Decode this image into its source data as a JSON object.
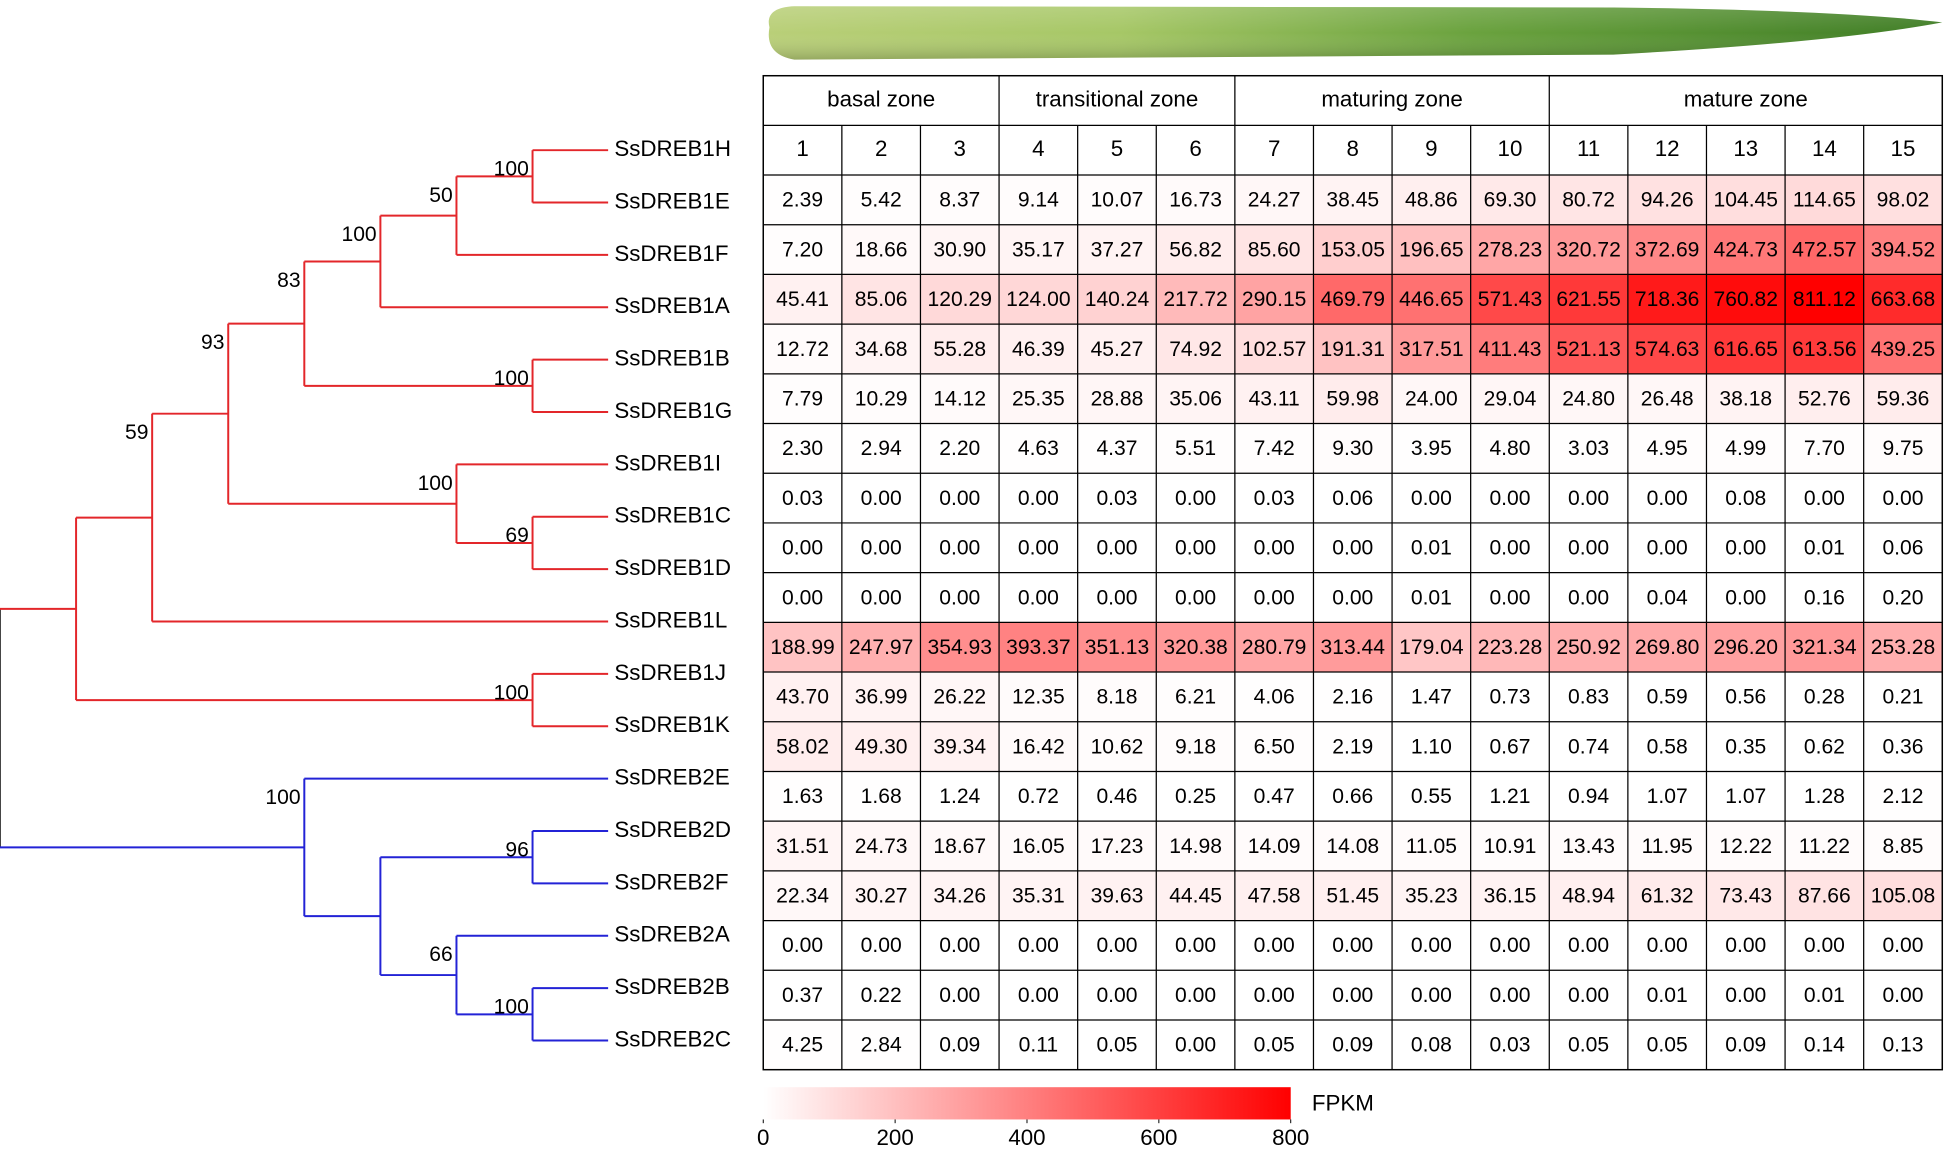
{
  "tree": {
    "color": "#444444",
    "children": [
      {
        "color": "#e3262a",
        "children": [
          {
            "support": 59,
            "children": [
              {
                "support": 93,
                "children": [
                  {
                    "support": 83,
                    "children": [
                      {
                        "support": 100,
                        "children": [
                          {
                            "support": 50,
                            "children": [
                              {
                                "support": 100,
                                "children": [
                                  {
                                    "name": "SsDREB1H"
                                  },
                                  {
                                    "name": "SsDREB1E"
                                  }
                                ]
                              },
                              {
                                "name": "SsDREB1F"
                              }
                            ]
                          },
                          {
                            "name": "SsDREB1A"
                          }
                        ]
                      },
                      {
                        "support": 100,
                        "children": [
                          {
                            "name": "SsDREB1B"
                          },
                          {
                            "name": "SsDREB1G"
                          }
                        ]
                      }
                    ]
                  },
                  {
                    "support": 100,
                    "children": [
                      {
                        "name": "SsDREB1I"
                      },
                      {
                        "support": 69,
                        "children": [
                          {
                            "name": "SsDREB1C"
                          },
                          {
                            "name": "SsDREB1D"
                          }
                        ]
                      }
                    ]
                  }
                ]
              },
              {
                "name": "SsDREB1L"
              }
            ]
          },
          {
            "support": 100,
            "children": [
              {
                "name": "SsDREB1J"
              },
              {
                "name": "SsDREB1K"
              }
            ]
          }
        ]
      },
      {
        "color": "#2323d6",
        "support": 100,
        "children": [
          {
            "name": "SsDREB2E"
          },
          {
            "children": [
              {
                "support": 96,
                "children": [
                  {
                    "name": "SsDREB2D"
                  },
                  {
                    "name": "SsDREB2F"
                  }
                ]
              },
              {
                "support": 66,
                "children": [
                  {
                    "name": "SsDREB2A"
                  },
                  {
                    "support": 100,
                    "children": [
                      {
                        "name": "SsDREB2B"
                      },
                      {
                        "name": "SsDREB2C"
                      }
                    ]
                  }
                ]
              }
            ]
          }
        ]
      }
    ]
  },
  "chart_data": {
    "type": "heatmap",
    "zones": [
      {
        "name": "basal zone",
        "categories": [
          "1",
          "2",
          "3"
        ]
      },
      {
        "name": "transitional zone",
        "categories": [
          "4",
          "5",
          "6"
        ]
      },
      {
        "name": "maturing zone",
        "categories": [
          "7",
          "8",
          "9",
          "10"
        ]
      },
      {
        "name": "mature zone",
        "categories": [
          "11",
          "12",
          "13",
          "14",
          "15"
        ]
      }
    ],
    "values": [
      [
        2.39,
        5.42,
        8.37,
        9.14,
        10.07,
        16.73,
        24.27,
        38.45,
        48.86,
        69.3,
        80.72,
        94.26,
        104.45,
        114.65,
        98.02
      ],
      [
        7.2,
        18.66,
        30.9,
        35.17,
        37.27,
        56.82,
        85.6,
        153.05,
        196.65,
        278.23,
        320.72,
        372.69,
        424.73,
        472.57,
        394.52
      ],
      [
        45.41,
        85.06,
        120.29,
        124.0,
        140.24,
        217.72,
        290.15,
        469.79,
        446.65,
        571.43,
        621.55,
        718.36,
        760.82,
        811.12,
        663.68
      ],
      [
        12.72,
        34.68,
        55.28,
        46.39,
        45.27,
        74.92,
        102.57,
        191.31,
        317.51,
        411.43,
        521.13,
        574.63,
        616.65,
        613.56,
        439.25
      ],
      [
        7.79,
        10.29,
        14.12,
        25.35,
        28.88,
        35.06,
        43.11,
        59.98,
        24.0,
        29.04,
        24.8,
        26.48,
        38.18,
        52.76,
        59.36
      ],
      [
        2.3,
        2.94,
        2.2,
        4.63,
        4.37,
        5.51,
        7.42,
        9.3,
        3.95,
        4.8,
        3.03,
        4.95,
        4.99,
        7.7,
        9.75
      ],
      [
        0.03,
        0.0,
        0.0,
        0.0,
        0.03,
        0.0,
        0.03,
        0.06,
        0.0,
        0.0,
        0.0,
        0.0,
        0.08,
        0.0,
        0.0
      ],
      [
        0.0,
        0.0,
        0.0,
        0.0,
        0.0,
        0.0,
        0.0,
        0.0,
        0.01,
        0.0,
        0.0,
        0.0,
        0.0,
        0.01,
        0.06
      ],
      [
        0.0,
        0.0,
        0.0,
        0.0,
        0.0,
        0.0,
        0.0,
        0.0,
        0.01,
        0.0,
        0.0,
        0.04,
        0.0,
        0.16,
        0.2
      ],
      [
        188.99,
        247.97,
        354.93,
        393.37,
        351.13,
        320.38,
        280.79,
        313.44,
        179.04,
        223.28,
        250.92,
        269.8,
        296.2,
        321.34,
        253.28
      ],
      [
        43.7,
        36.99,
        26.22,
        12.35,
        8.18,
        6.21,
        4.06,
        2.16,
        1.47,
        0.73,
        0.83,
        0.59,
        0.56,
        0.28,
        0.21
      ],
      [
        58.02,
        49.3,
        39.34,
        16.42,
        10.62,
        9.18,
        6.5,
        2.19,
        1.1,
        0.67,
        0.74,
        0.58,
        0.35,
        0.62,
        0.36
      ],
      [
        1.63,
        1.68,
        1.24,
        0.72,
        0.46,
        0.25,
        0.47,
        0.66,
        0.55,
        1.21,
        0.94,
        1.07,
        1.07,
        1.28,
        2.12
      ],
      [
        31.51,
        24.73,
        18.67,
        16.05,
        17.23,
        14.98,
        14.09,
        14.08,
        11.05,
        10.91,
        13.43,
        11.95,
        12.22,
        11.22,
        8.85
      ],
      [
        22.34,
        30.27,
        34.26,
        35.31,
        39.63,
        44.45,
        47.58,
        51.45,
        35.23,
        36.15,
        48.94,
        61.32,
        73.43,
        87.66,
        105.08
      ],
      [
        0.0,
        0.0,
        0.0,
        0.0,
        0.0,
        0.0,
        0.0,
        0.0,
        0.0,
        0.0,
        0.0,
        0.0,
        0.0,
        0.0,
        0.0
      ],
      [
        0.37,
        0.22,
        0.0,
        0.0,
        0.0,
        0.0,
        0.0,
        0.0,
        0.0,
        0.0,
        0.0,
        0.01,
        0.0,
        0.01,
        0.0
      ],
      [
        4.25,
        2.84,
        0.09,
        0.11,
        0.05,
        0.0,
        0.05,
        0.09,
        0.08,
        0.03,
        0.05,
        0.05,
        0.09,
        0.14,
        0.13
      ]
    ],
    "value_labels": [
      [
        "2.39",
        "5.42",
        "8.37",
        "9.14",
        "10.07",
        "16.73",
        "24.27",
        "38.45",
        "48.86",
        "69.30",
        "80.72",
        "94.26",
        "104.45",
        "114.65",
        "98.02"
      ],
      [
        "7.20",
        "18.66",
        "30.90",
        "35.17",
        "37.27",
        "56.82",
        "85.60",
        "153.05",
        "196.65",
        "278.23",
        "320.72",
        "372.69",
        "424.73",
        "472.57",
        "394.52"
      ],
      [
        "45.41",
        "85.06",
        "120.29",
        "124.00",
        "140.24",
        "217.72",
        "290.15",
        "469.79",
        "446.65",
        "571.43",
        "621.55",
        "718.36",
        "760.82",
        "811.12",
        "663.68"
      ],
      [
        "12.72",
        "34.68",
        "55.28",
        "46.39",
        "45.27",
        "74.92",
        "102.57",
        "191.31",
        "317.51",
        "411.43",
        "521.13",
        "574.63",
        "616.65",
        "613.56",
        "439.25"
      ],
      [
        "7.79",
        "10.29",
        "14.12",
        "25.35",
        "28.88",
        "35.06",
        "43.11",
        "59.98",
        "24.00",
        "29.04",
        "24.80",
        "26.48",
        "38.18",
        "52.76",
        "59.36"
      ],
      [
        "2.30",
        "2.94",
        "2.20",
        "4.63",
        "4.37",
        "5.51",
        "7.42",
        "9.30",
        "3.95",
        "4.80",
        "3.03",
        "4.95",
        "4.99",
        "7.70",
        "9.75"
      ],
      [
        "0.03",
        "0.00",
        "0.00",
        "0.00",
        "0.03",
        "0.00",
        "0.03",
        "0.06",
        "0.00",
        "0.00",
        "0.00",
        "0.00",
        "0.08",
        "0.00",
        "0.00"
      ],
      [
        "0.00",
        "0.00",
        "0.00",
        "0.00",
        "0.00",
        "0.00",
        "0.00",
        "0.00",
        "0.01",
        "0.00",
        "0.00",
        "0.00",
        "0.00",
        "0.01",
        "0.06"
      ],
      [
        "0.00",
        "0.00",
        "0.00",
        "0.00",
        "0.00",
        "0.00",
        "0.00",
        "0.00",
        "0.01",
        "0.00",
        "0.00",
        "0.04",
        "0.00",
        "0.16",
        "0.20"
      ],
      [
        "188.99",
        "247.97",
        "354.93",
        "393.37",
        "351.13",
        "320.38",
        "280.79",
        "313.44",
        "179.04",
        "223.28",
        "250.92",
        "269.80",
        "296.20",
        "321.34",
        "253.28"
      ],
      [
        "43.70",
        "36.99",
        "26.22",
        "12.35",
        "8.18",
        "6.21",
        "4.06",
        "2.16",
        "1.47",
        "0.73",
        "0.83",
        "0.59",
        "0.56",
        "0.28",
        "0.21"
      ],
      [
        "58.02",
        "49.30",
        "39.34",
        "16.42",
        "10.62",
        "9.18",
        "6.50",
        "2.19",
        "1.10",
        "0.67",
        "0.74",
        "0.58",
        "0.35",
        "0.62",
        "0.36"
      ],
      [
        "1.63",
        "1.68",
        "1.24",
        "0.72",
        "0.46",
        "0.25",
        "0.47",
        "0.66",
        "0.55",
        "1.21",
        "0.94",
        "1.07",
        "1.07",
        "1.28",
        "2.12"
      ],
      [
        "31.51",
        "24.73",
        "18.67",
        "16.05",
        "17.23",
        "14.98",
        "14.09",
        "14.08",
        "11.05",
        "10.91",
        "13.43",
        "11.95",
        "12.22",
        "11.22",
        "8.85"
      ],
      [
        "22.34",
        "30.27",
        "34.26",
        "35.31",
        "39.63",
        "44.45",
        "47.58",
        "51.45",
        "35.23",
        "36.15",
        "48.94",
        "61.32",
        "73.43",
        "87.66",
        "105.08"
      ],
      [
        "0.00",
        "0.00",
        "0.00",
        "0.00",
        "0.00",
        "0.00",
        "0.00",
        "0.00",
        "0.00",
        "0.00",
        "0.00",
        "0.00",
        "0.00",
        "0.00",
        "0.00"
      ],
      [
        "0.37",
        "0.22",
        "0.00",
        "0.00",
        "0.00",
        "0.00",
        "0.00",
        "0.00",
        "0.00",
        "0.00",
        "0.00",
        "0.01",
        "0.00",
        "0.01",
        "0.00"
      ],
      [
        "4.25",
        "2.84",
        "0.09",
        "0.11",
        "0.05",
        "0.00",
        "0.05",
        "0.09",
        "0.08",
        "0.03",
        "0.05",
        "0.05",
        "0.09",
        "0.14",
        "0.13"
      ]
    ],
    "colorbar": {
      "label": "FPKM",
      "clim": [
        0,
        800
      ],
      "ticks": [
        0,
        200,
        400,
        600,
        800
      ],
      "colors": [
        "#ffffff",
        "#ff0000"
      ]
    }
  }
}
